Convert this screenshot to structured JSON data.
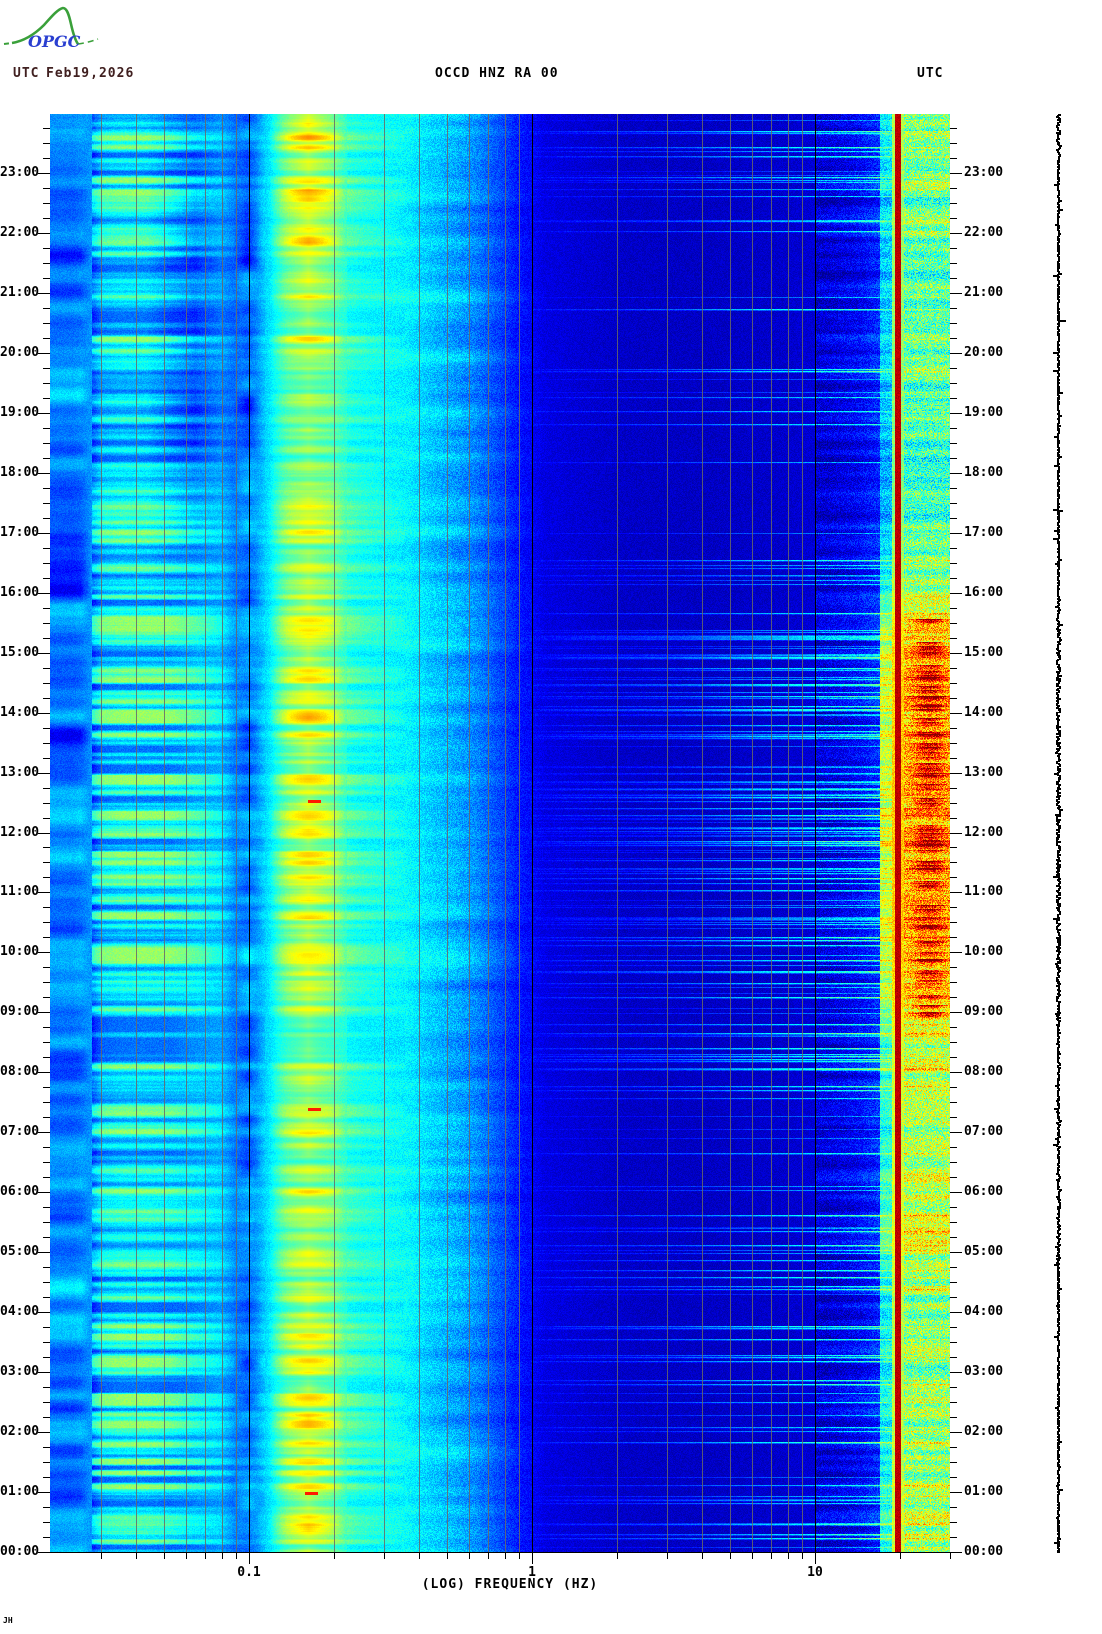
{
  "header": {
    "left_utc": "UTC",
    "date": "Feb19,2026",
    "date_color": "#402020",
    "title": "OCCD HNZ RA 00",
    "title_color": "#000000",
    "right_utc": "UTC"
  },
  "logo": {
    "text": "OPGC",
    "text_color": "#2a3fd0",
    "curve_color": "#3aa03a"
  },
  "watermark": {
    "text": "JH"
  },
  "chart_data": {
    "type": "heatmap",
    "subtype": "seismic-spectrogram",
    "title": "OCCD HNZ RA 00",
    "date": "Feb19,2026",
    "timezone": "UTC",
    "xlabel": "(LOG) FREQUENCY (HZ)",
    "x_scale": "log10",
    "freq_range_hz": [
      0.02,
      30
    ],
    "x_major_ticks_hz": [
      0.1,
      1,
      10
    ],
    "x_major_tick_labels": [
      "0.1",
      "1",
      "10"
    ],
    "x_minor_ticks_hz": [
      0.03,
      0.04,
      0.05,
      0.06,
      0.07,
      0.08,
      0.09,
      0.2,
      0.3,
      0.4,
      0.5,
      0.6,
      0.7,
      0.8,
      0.9,
      2,
      3,
      4,
      5,
      6,
      7,
      8,
      9,
      20,
      30
    ],
    "time_range_hours": [
      0,
      24
    ],
    "time_axis_direction": "bottom-to-top",
    "minor_tick_minutes": 15,
    "hour_labels": [
      "00:00",
      "01:00",
      "02:00",
      "03:00",
      "04:00",
      "05:00",
      "06:00",
      "07:00",
      "08:00",
      "09:00",
      "10:00",
      "11:00",
      "12:00",
      "13:00",
      "14:00",
      "15:00",
      "16:00",
      "17:00",
      "18:00",
      "19:00",
      "20:00",
      "21:00",
      "22:00",
      "23:00"
    ],
    "colormap": "jet",
    "grid": {
      "minor_color": "rgba(105,105,105,0.85)",
      "decade_color": "#000000",
      "minor_lines_hz": [
        0.03,
        0.04,
        0.05,
        0.06,
        0.07,
        0.08,
        0.09,
        0.2,
        0.3,
        0.4,
        0.5,
        0.6,
        0.7,
        0.8,
        0.9,
        2,
        3,
        4,
        5,
        6,
        7,
        8,
        9
      ],
      "decade_lines_hz": [
        0.1,
        1,
        10
      ]
    },
    "seed": 20260219,
    "base_profile_logf_value": [
      [
        -1.72,
        0.24
      ],
      [
        -1.62,
        0.24
      ],
      [
        -1.56,
        0.27
      ],
      [
        -1.52,
        0.36
      ],
      [
        -1.45,
        0.38
      ],
      [
        -1.3,
        0.38
      ],
      [
        -1.18,
        0.37
      ],
      [
        -1.1,
        0.34
      ],
      [
        -1.05,
        0.26
      ],
      [
        -1.01,
        0.24
      ],
      [
        -0.975,
        0.27
      ],
      [
        -0.945,
        0.33
      ],
      [
        -0.9,
        0.4
      ],
      [
        -0.86,
        0.46
      ],
      [
        -0.8,
        0.48
      ],
      [
        -0.72,
        0.48
      ],
      [
        -0.66,
        0.44
      ],
      [
        -0.6,
        0.41
      ],
      [
        -0.52,
        0.39
      ],
      [
        -0.44,
        0.37
      ],
      [
        -0.36,
        0.33
      ],
      [
        -0.28,
        0.3
      ],
      [
        -0.2,
        0.26
      ],
      [
        -0.12,
        0.2
      ],
      [
        -0.04,
        0.14
      ],
      [
        0.05,
        0.095
      ],
      [
        0.3,
        0.07
      ],
      [
        0.6,
        0.065
      ],
      [
        0.9,
        0.075
      ],
      [
        1.05,
        0.09
      ],
      [
        1.15,
        0.12
      ],
      [
        1.23,
        0.17
      ]
    ],
    "spectral_line": {
      "hz": 19.5,
      "note": "persistent dark-red narrowband line"
    },
    "activity_profile_hours": [
      [
        0,
        0.62
      ],
      [
        1.5,
        0.55
      ],
      [
        3,
        0.5
      ],
      [
        4.5,
        0.55
      ],
      [
        5.3,
        0.72
      ],
      [
        6.2,
        0.62
      ],
      [
        7,
        0.58
      ],
      [
        8.5,
        0.62
      ],
      [
        9.2,
        0.9
      ],
      [
        10.5,
        1.0
      ],
      [
        13,
        1.0
      ],
      [
        15.3,
        0.92
      ],
      [
        15.8,
        0.65
      ],
      [
        16.5,
        0.45
      ],
      [
        17.5,
        0.32
      ],
      [
        19,
        0.36
      ],
      [
        21,
        0.4
      ],
      [
        22.5,
        0.42
      ],
      [
        24,
        0.5
      ]
    ],
    "microseism_profile_hours": [
      [
        0,
        0.72
      ],
      [
        2,
        0.7
      ],
      [
        4,
        0.64
      ],
      [
        6,
        0.6
      ],
      [
        8,
        0.6
      ],
      [
        10,
        0.64
      ],
      [
        11.5,
        0.7
      ],
      [
        13,
        0.72
      ],
      [
        15,
        0.7
      ],
      [
        16.5,
        0.62
      ],
      [
        18,
        0.56
      ],
      [
        19.5,
        0.6
      ],
      [
        21,
        0.7
      ],
      [
        22.5,
        0.76
      ],
      [
        24,
        0.76
      ]
    ],
    "night_dark_profile_hours": [
      [
        0,
        0.22
      ],
      [
        3,
        0.18
      ],
      [
        5,
        0.12
      ],
      [
        7,
        0.08
      ],
      [
        9,
        0.02
      ],
      [
        15.5,
        0
      ],
      [
        16.5,
        0.25
      ],
      [
        17.5,
        0.5
      ],
      [
        19,
        0.6
      ],
      [
        21,
        0.55
      ],
      [
        22.5,
        0.5
      ],
      [
        24,
        0.45
      ]
    ],
    "streak_boost_windows_hours": [
      [
        0,
        4.3
      ],
      [
        9.5,
        16.2
      ]
    ],
    "red_marks": [
      {
        "hour": 1.0,
        "hz": 0.165
      },
      {
        "hour": 7.4,
        "hz": 0.17
      },
      {
        "hour": 12.55,
        "hz": 0.17
      }
    ],
    "trace": {
      "color": "#000000",
      "description": "vertical seismogram trace, jitter follows activity"
    }
  }
}
